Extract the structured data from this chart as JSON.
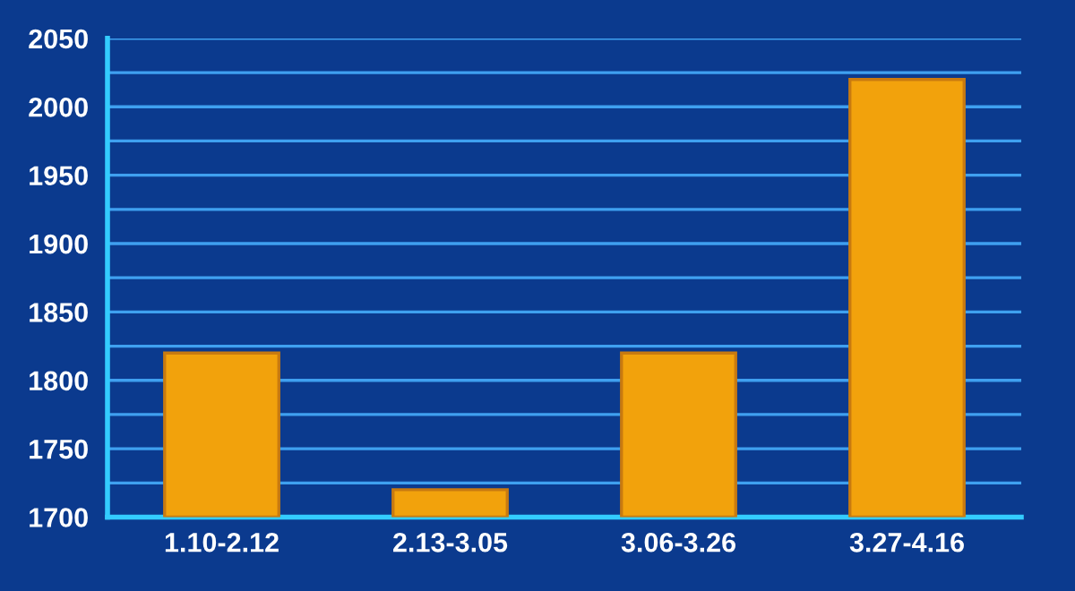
{
  "chart_data": {
    "type": "bar",
    "categories": [
      "1.10-2.12",
      "2.13-3.05",
      "3.06-3.26",
      "3.27-4.16"
    ],
    "values": [
      1820,
      1720,
      1820,
      2020
    ],
    "color": "#f2a20c",
    "ylim": [
      1700,
      2050
    ],
    "yticks": [
      1700,
      {
        "value": 1725,
        "label": null
      },
      1750,
      {
        "value": 1775,
        "label": null
      },
      1800,
      {
        "value": 1825,
        "label": null
      },
      1850,
      {
        "value": 1875,
        "label": null
      },
      1900,
      {
        "value": 1925,
        "label": null
      },
      1950,
      {
        "value": 1975,
        "label": null
      },
      2000,
      {
        "value": 2025,
        "label": null
      },
      2050
    ],
    "grid": "y"
  }
}
